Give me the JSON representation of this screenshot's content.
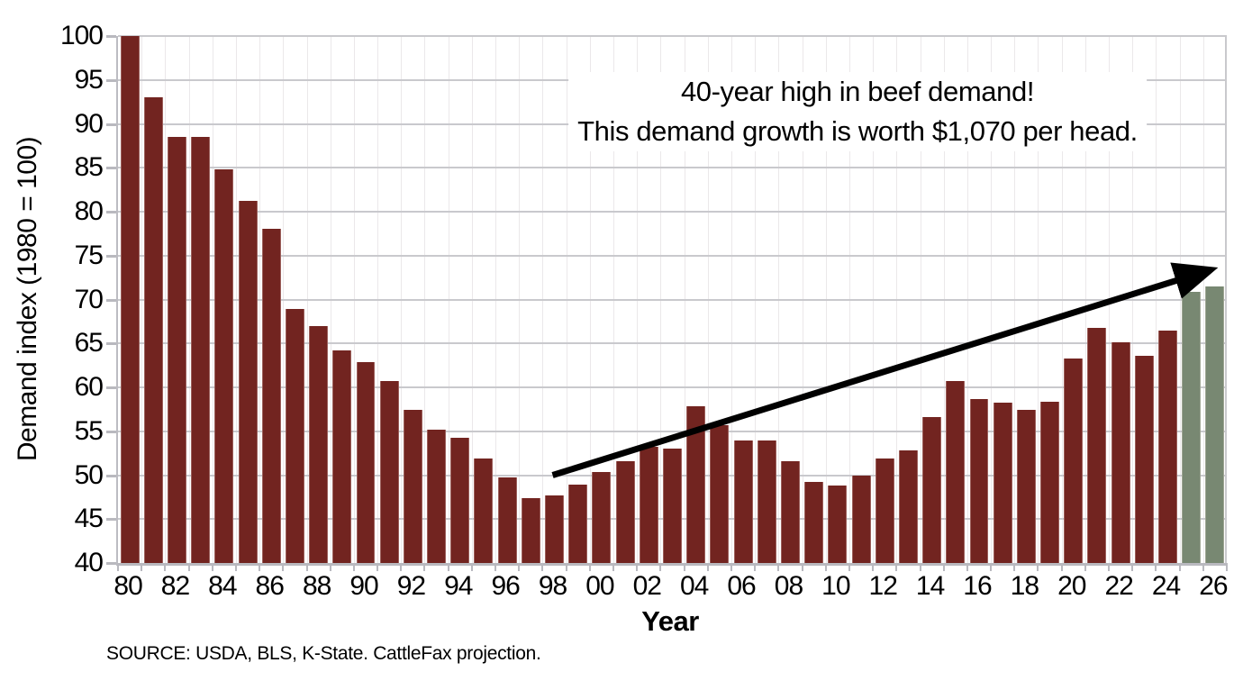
{
  "annotation": {
    "line1": "40-year high in beef demand!",
    "line2": "This demand growth is worth $1,070 per head."
  },
  "source": "SOURCE: USDA, BLS, K-State. CattleFax projection.",
  "colors": {
    "bar": "#722420",
    "projection_bar": "#788872",
    "hgrid": "#c9c9cd",
    "vgrid": "#ebe8ea",
    "axis": "#b9b9bf",
    "arrow": "#000000"
  },
  "chart_data": {
    "type": "bar",
    "title": "",
    "xlabel": "Year",
    "ylabel": "Demand index (1980 = 100)",
    "ylim": [
      40,
      100
    ],
    "ytick_step": 5,
    "grid": "horizontal and faint vertical, legend none",
    "categories": [
      1980,
      1981,
      1982,
      1983,
      1984,
      1985,
      1986,
      1987,
      1988,
      1989,
      1990,
      1991,
      1992,
      1993,
      1994,
      1995,
      1996,
      1997,
      1998,
      1999,
      2000,
      2001,
      2002,
      2003,
      2004,
      2005,
      2006,
      2007,
      2008,
      2009,
      2010,
      2011,
      2012,
      2013,
      2014,
      2015,
      2016,
      2017,
      2018,
      2019,
      2020,
      2021,
      2022,
      2023,
      2024,
      2025,
      2026
    ],
    "values": [
      100,
      93.0,
      88.5,
      88.5,
      84.8,
      81.2,
      78.1,
      68.9,
      67.0,
      64.2,
      62.9,
      60.7,
      57.4,
      55.2,
      54.3,
      51.9,
      49.7,
      47.4,
      47.7,
      48.9,
      50.4,
      51.6,
      53.2,
      53.0,
      57.8,
      55.7,
      54.0,
      54.0,
      51.6,
      49.2,
      48.8,
      49.9,
      51.9,
      52.8,
      56.6,
      60.7,
      58.7,
      58.3,
      57.4,
      58.4,
      63.3,
      66.8,
      65.1,
      63.6,
      66.5,
      70.9,
      71.5
    ],
    "projection_from_year": 2025,
    "x_tick_labels": [
      "80",
      "82",
      "84",
      "86",
      "88",
      "90",
      "92",
      "94",
      "96",
      "98",
      "00",
      "02",
      "04",
      "06",
      "08",
      "10",
      "12",
      "14",
      "16",
      "18",
      "20",
      "22",
      "24",
      "26"
    ],
    "annotation_arrow": {
      "from": {
        "year": 1998.0,
        "value": 50.0
      },
      "to": {
        "year": 2025.8,
        "value": 73.3
      }
    }
  }
}
